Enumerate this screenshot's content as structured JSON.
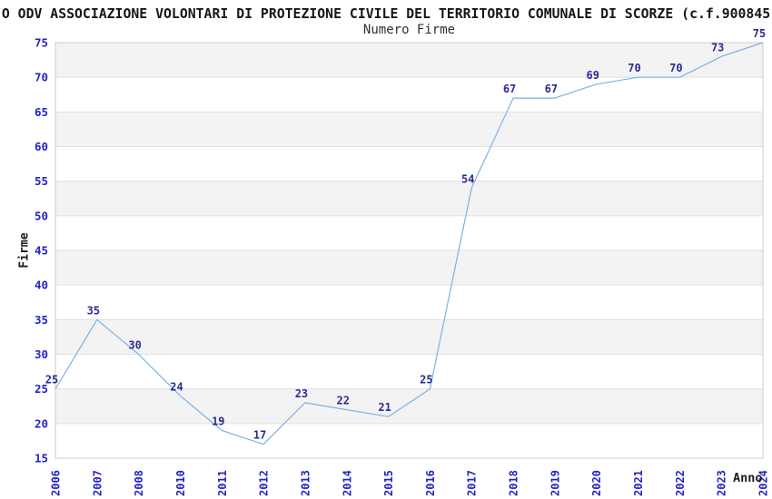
{
  "chart_data": {
    "type": "line",
    "title": "O ODV ASSOCIAZIONE VOLONTARI DI PROTEZIONE CIVILE DEL TERRITORIO COMUNALE DI SCORZE (c.f.900845",
    "subtitle": "Numero Firme",
    "xlabel": "Anno",
    "ylabel": "Firme",
    "categories": [
      "2006",
      "2007",
      "2008",
      "2010",
      "2011",
      "2012",
      "2013",
      "2014",
      "2015",
      "2016",
      "2017",
      "2018",
      "2019",
      "2020",
      "2021",
      "2022",
      "2023",
      "2024"
    ],
    "values": [
      25,
      35,
      30,
      24,
      19,
      17,
      23,
      22,
      21,
      25,
      54,
      67,
      67,
      69,
      70,
      70,
      73,
      75
    ],
    "ylim": [
      15,
      75
    ],
    "ytick_step": 5,
    "grid": "horizontal-bands-alternating",
    "legend": "none",
    "data_labels": "shown-above-points",
    "colors": {
      "line": "#7db1e6",
      "tick_label": "#2323c8",
      "data_label": "#2b2b96",
      "band_fill": "#f3f3f3",
      "gridline": "#e0e0e0",
      "plot_border": "#cccccc",
      "title_text": "#161616"
    }
  }
}
